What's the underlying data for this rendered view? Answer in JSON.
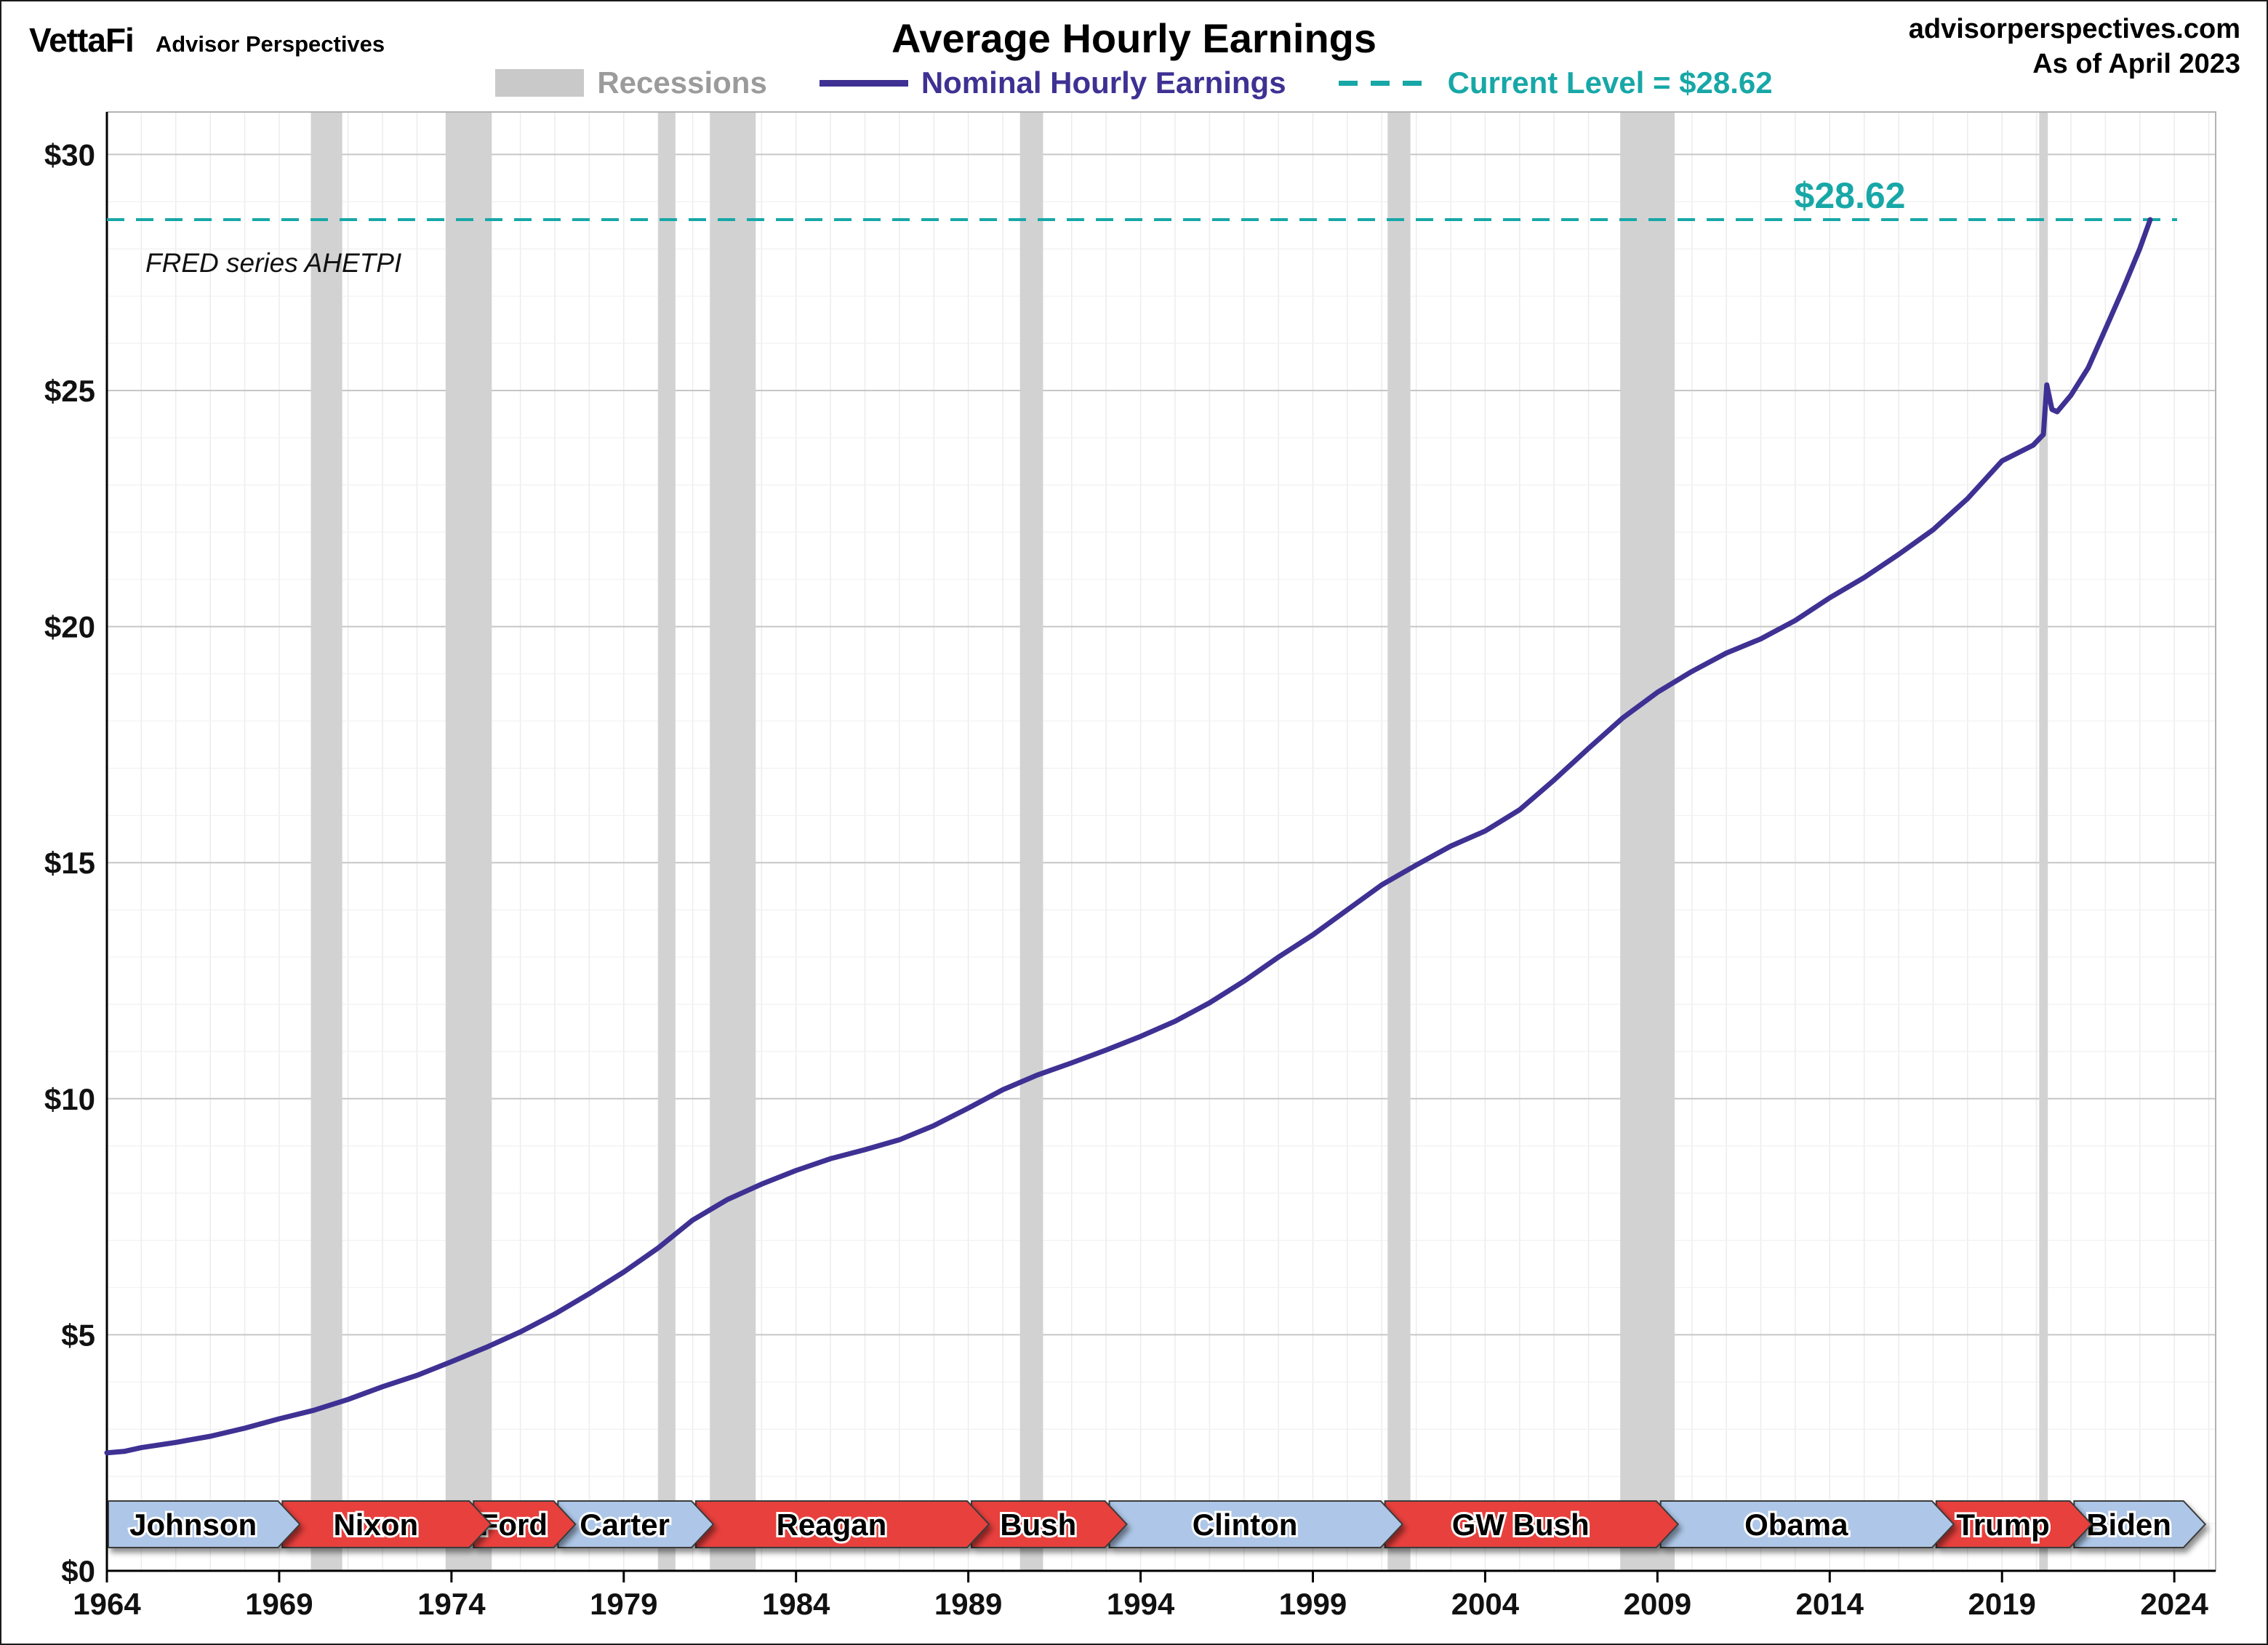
{
  "header": {
    "logo_primary": "VettaFi",
    "logo_secondary": "Advisor Perspectives",
    "title": "Average Hourly Earnings",
    "site": "advisorperspectives.com",
    "as_of": "As of April 2023"
  },
  "legend": {
    "recessions_label": "Recessions",
    "series_label": "Nominal Hourly Earnings",
    "current_level_label": "Current Level = $28.62"
  },
  "chart_data": {
    "type": "line",
    "title": "Average Hourly Earnings",
    "note": "FRED series AHETPI",
    "xlabel": "",
    "ylabel": "",
    "grid": true,
    "legend_position": "top",
    "x_range": [
      1964,
      2025.2
    ],
    "y_range": [
      0,
      30.9
    ],
    "x_ticks": [
      1964,
      1969,
      1974,
      1979,
      1984,
      1989,
      1994,
      1999,
      2004,
      2009,
      2014,
      2019,
      2024
    ],
    "y_ticks": [
      0,
      5,
      10,
      15,
      20,
      25,
      30
    ],
    "y_tick_labels": [
      "$0",
      "$5",
      "$10",
      "$15",
      "$20",
      "$25",
      "$30"
    ],
    "current_level": 28.62,
    "current_level_label": "$28.62",
    "current_level_color": "#18a7a7",
    "recession_color": "#d2d2d2",
    "recessions": [
      [
        1969.92,
        1970.83
      ],
      [
        1973.83,
        1975.17
      ],
      [
        1980.0,
        1980.5
      ],
      [
        1981.5,
        1982.83
      ],
      [
        1990.5,
        1991.17
      ],
      [
        2001.17,
        2001.83
      ],
      [
        2007.92,
        2009.5
      ],
      [
        2020.08,
        2020.33
      ]
    ],
    "series": [
      {
        "name": "Nominal Hourly Earnings",
        "color": "#3e3193",
        "points": [
          [
            1964.0,
            2.5
          ],
          [
            1964.5,
            2.53
          ],
          [
            1965,
            2.61
          ],
          [
            1966,
            2.72
          ],
          [
            1967,
            2.85
          ],
          [
            1968,
            3.02
          ],
          [
            1969,
            3.22
          ],
          [
            1970,
            3.4
          ],
          [
            1971,
            3.63
          ],
          [
            1972,
            3.9
          ],
          [
            1973,
            4.14
          ],
          [
            1974,
            4.43
          ],
          [
            1975,
            4.73
          ],
          [
            1976,
            5.06
          ],
          [
            1977,
            5.44
          ],
          [
            1978,
            5.87
          ],
          [
            1979,
            6.33
          ],
          [
            1980,
            6.84
          ],
          [
            1981,
            7.43
          ],
          [
            1982,
            7.86
          ],
          [
            1983,
            8.19
          ],
          [
            1984,
            8.48
          ],
          [
            1985,
            8.73
          ],
          [
            1986,
            8.92
          ],
          [
            1987,
            9.13
          ],
          [
            1988,
            9.43
          ],
          [
            1989,
            9.8
          ],
          [
            1990,
            10.19
          ],
          [
            1991,
            10.5
          ],
          [
            1992,
            10.76
          ],
          [
            1993,
            11.03
          ],
          [
            1994,
            11.32
          ],
          [
            1995,
            11.64
          ],
          [
            1996,
            12.03
          ],
          [
            1997,
            12.49
          ],
          [
            1998,
            13.0
          ],
          [
            1999,
            13.47
          ],
          [
            2000,
            14.0
          ],
          [
            2001,
            14.53
          ],
          [
            2002,
            14.95
          ],
          [
            2003,
            15.35
          ],
          [
            2004,
            15.67
          ],
          [
            2005,
            16.12
          ],
          [
            2006,
            16.75
          ],
          [
            2007,
            17.42
          ],
          [
            2008,
            18.07
          ],
          [
            2009,
            18.61
          ],
          [
            2010,
            19.05
          ],
          [
            2011,
            19.44
          ],
          [
            2012,
            19.74
          ],
          [
            2013,
            20.13
          ],
          [
            2014,
            20.61
          ],
          [
            2015,
            21.04
          ],
          [
            2016,
            21.53
          ],
          [
            2017,
            22.05
          ],
          [
            2018,
            22.71
          ],
          [
            2019,
            23.51
          ],
          [
            2019.9,
            23.84
          ],
          [
            2020.2,
            24.07
          ],
          [
            2020.3,
            25.12
          ],
          [
            2020.45,
            24.6
          ],
          [
            2020.6,
            24.55
          ],
          [
            2021.0,
            24.9
          ],
          [
            2021.5,
            25.48
          ],
          [
            2022.0,
            26.3
          ],
          [
            2022.5,
            27.13
          ],
          [
            2023.0,
            28.01
          ],
          [
            2023.3,
            28.62
          ]
        ]
      }
    ],
    "presidents": [
      {
        "name": "Johnson",
        "party": "D",
        "start": 1964.0,
        "end": 1969.05
      },
      {
        "name": "Nixon",
        "party": "R",
        "start": 1969.05,
        "end": 1974.6
      },
      {
        "name": "Ford",
        "party": "R",
        "start": 1974.6,
        "end": 1977.05
      },
      {
        "name": "Carter",
        "party": "D",
        "start": 1977.05,
        "end": 1981.05
      },
      {
        "name": "Reagan",
        "party": "R",
        "start": 1981.05,
        "end": 1989.05
      },
      {
        "name": "Bush",
        "party": "R",
        "start": 1989.05,
        "end": 1993.05
      },
      {
        "name": "Clinton",
        "party": "D",
        "start": 1993.05,
        "end": 2001.05
      },
      {
        "name": "GW Bush",
        "party": "R",
        "start": 2001.05,
        "end": 2009.05
      },
      {
        "name": "Obama",
        "party": "D",
        "start": 2009.05,
        "end": 2017.05
      },
      {
        "name": "Trump",
        "party": "R",
        "start": 2017.05,
        "end": 2021.05
      },
      {
        "name": "Biden",
        "party": "D",
        "start": 2021.05,
        "end": 2024.35
      }
    ],
    "party_colors": {
      "D": "#aec7e8",
      "R": "#e8403c"
    }
  }
}
